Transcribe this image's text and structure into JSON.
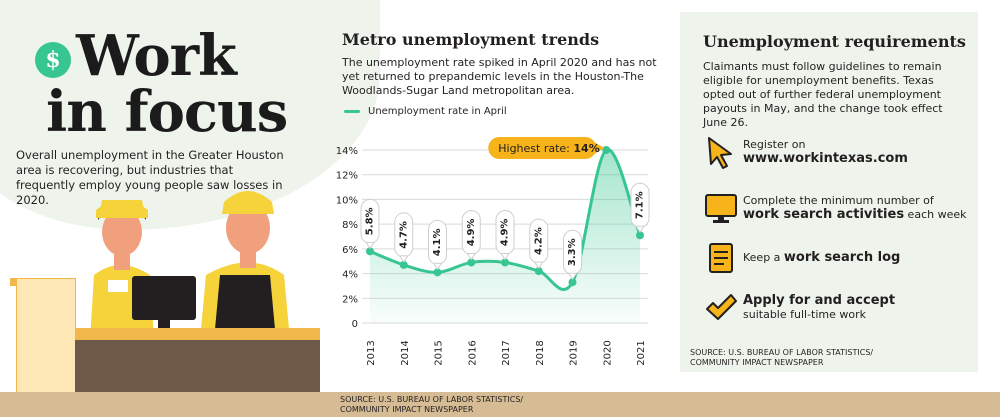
{
  "hero": {
    "icon": "dollar-coin-icon",
    "title_line1": "Work",
    "title_line2": "in focus",
    "intro": "Overall unemployment in the Greater Houston area is recovering, but industries that frequently employ young people saw losses in 2020."
  },
  "chart_section": {
    "title": "Metro unemployment trends",
    "subtitle": "The unemployment rate spiked in April 2020 and has not yet returned to prepandemic levels in the Houston-The Woodlands-Sugar Land metropolitan area.",
    "legend": "Unemployment rate in April",
    "callout_prefix": "Highest rate: ",
    "callout_value": "14%",
    "source_line1": "SOURCE: U.S. BUREAU OF LABOR STATISTICS/",
    "source_line2": "COMMUNITY IMPACT NEWSPAPER"
  },
  "chart_data": {
    "type": "line",
    "title": "Metro unemployment trends",
    "x": [
      "2013",
      "2014",
      "2015",
      "2016",
      "2017",
      "2018",
      "2019",
      "2020",
      "2021"
    ],
    "series": [
      {
        "name": "Unemployment rate in April",
        "values": [
          5.8,
          4.7,
          4.1,
          4.9,
          4.9,
          4.2,
          3.3,
          14.0,
          7.1
        ],
        "labels": [
          "5.8%",
          "4.7%",
          "4.1%",
          "4.9%",
          "4.9%",
          "4.2%",
          "3.3%",
          "",
          "7.1%"
        ]
      }
    ],
    "y_ticks": [
      "0",
      "2%",
      "4%",
      "6%",
      "8%",
      "10%",
      "12%",
      "14%"
    ],
    "ylim": [
      0,
      14
    ],
    "grid": true,
    "color": "#37c691",
    "annotation": "Highest rate: 14%"
  },
  "requirements": {
    "title": "Unemployment requirements",
    "description": "Claimants must follow guidelines to remain eligible for unemployment benefits. Texas opted out of further federal unemployment payouts in May, and the change took effect June 26.",
    "items": [
      {
        "icon": "cursor-arrow-icon",
        "pre": "Register on",
        "bold": "www.workintexas.com",
        "post": ""
      },
      {
        "icon": "computer-monitor-icon",
        "pre": "Complete the minimum number of",
        "bold": "work search activities",
        "post": " each week"
      },
      {
        "icon": "notepad-log-icon",
        "pre": "Keep a ",
        "bold": "work search log",
        "post": ""
      },
      {
        "icon": "checkmark-icon",
        "pre": "",
        "bold": "Apply for and accept",
        "post": "suitable full-time work"
      }
    ],
    "source_line1": "SOURCE: U.S. BUREAU OF LABOR STATISTICS/",
    "source_line2": "COMMUNITY IMPACT NEWSPAPER"
  },
  "colors": {
    "accent_green": "#37c691",
    "highlight_yellow": "#f6b41a",
    "panel_green": "#eef4ec",
    "ground_tan": "#d6bc94"
  }
}
